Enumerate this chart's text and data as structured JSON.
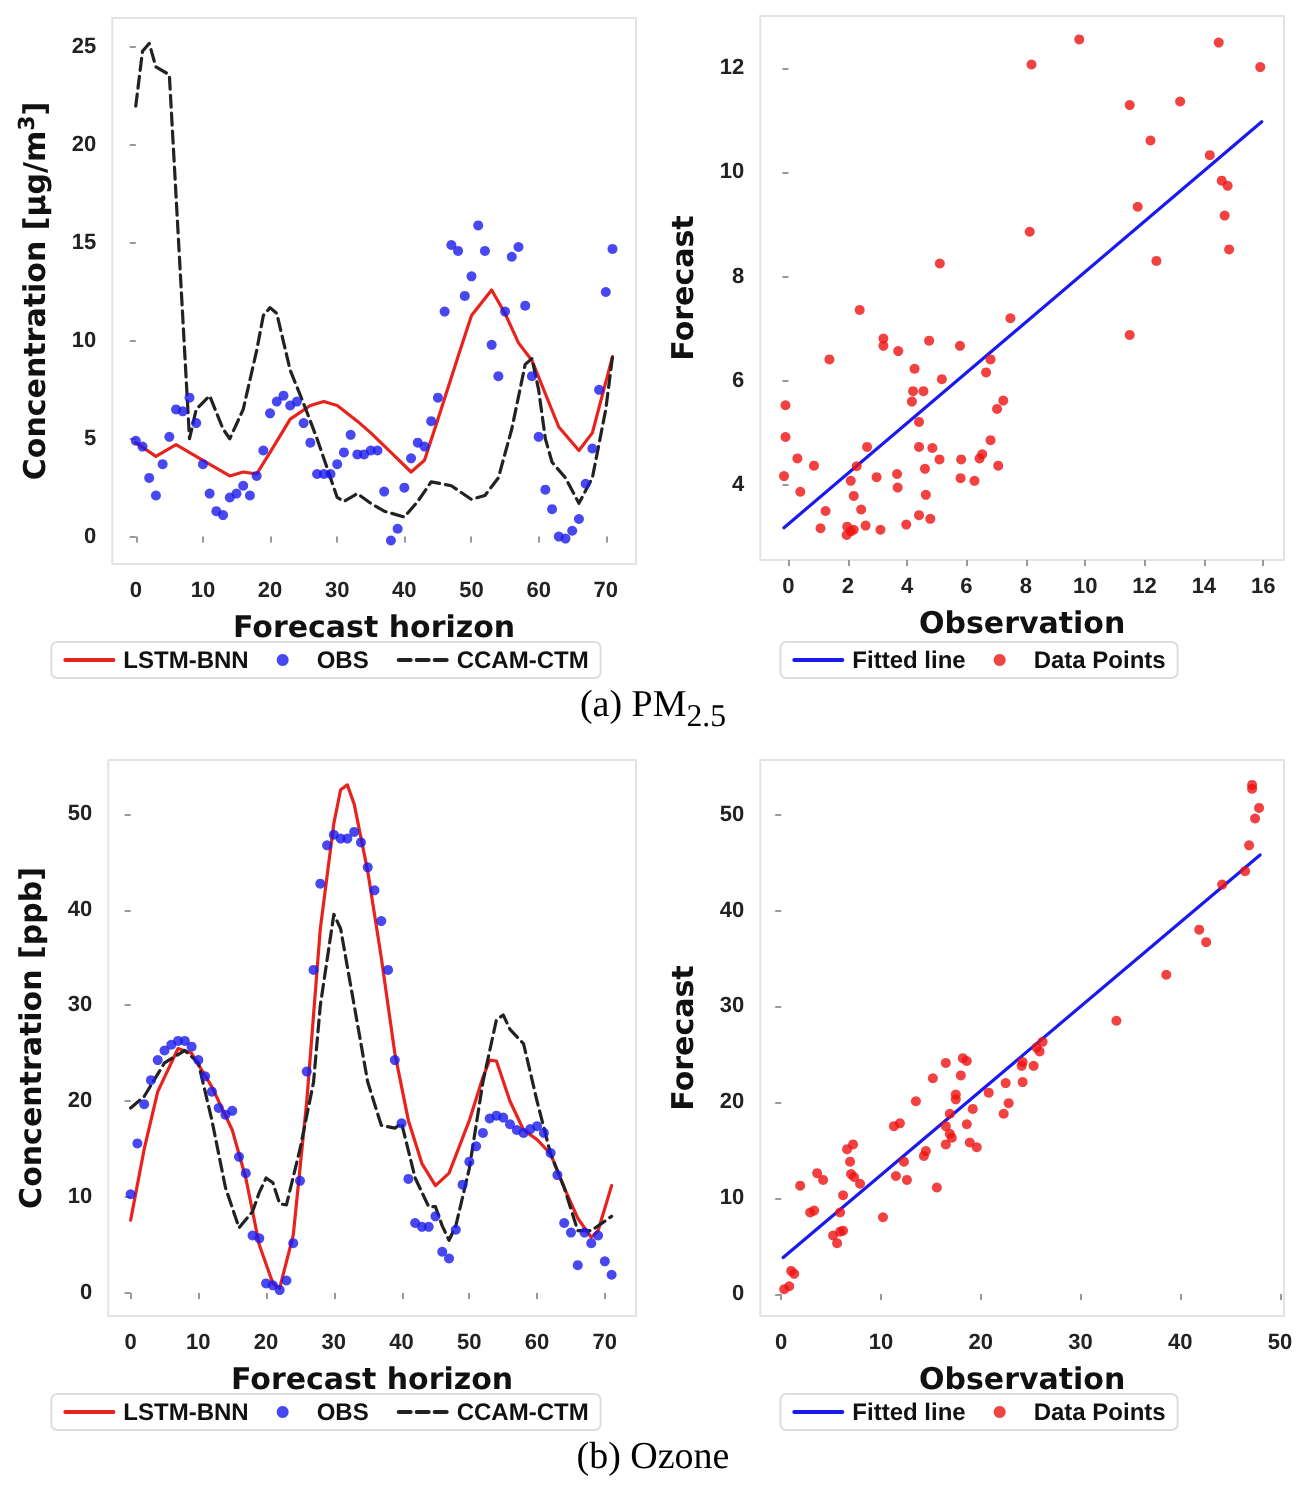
{
  "chart_data": [
    {
      "type": "line",
      "xlabel": "Forecast horizon",
      "ylabel": "Concentration [μg/m$^{3}$]",
      "xlim": [
        -3.5,
        74.5
      ],
      "ylim": [
        -1.4,
        26.5
      ],
      "xticks": [
        0,
        10,
        20,
        30,
        40,
        50,
        60,
        70
      ],
      "yticks": [
        0,
        5,
        10,
        15,
        20,
        25
      ],
      "legend": "bottom",
      "annotations": [
        "(a) PM$_{2.5}$"
      ],
      "series": [
        {
          "name": "LSTM-BNN",
          "color": "#e8221c",
          "line_style": "solid",
          "marker": "none",
          "x": [
            0,
            3,
            6,
            10,
            14,
            16,
            18,
            20,
            23,
            26,
            28,
            30,
            33,
            35,
            38,
            41,
            43,
            45,
            48,
            50,
            53,
            55,
            57,
            59,
            61,
            63,
            66,
            68,
            71
          ],
          "values": [
            4.8,
            4.1,
            4.7,
            3.9,
            3.1,
            3.3,
            3.2,
            4.3,
            6.0,
            6.7,
            6.9,
            6.7,
            5.9,
            5.3,
            4.3,
            3.3,
            3.9,
            6.0,
            9.2,
            11.3,
            12.6,
            11.4,
            9.9,
            9.0,
            7.3,
            5.6,
            4.4,
            5.3,
            9.2
          ]
        },
        {
          "name": "OBS",
          "type": "scatter",
          "color": "#1a1aee",
          "marker": "circle",
          "x": [
            0,
            1,
            2,
            3,
            4,
            5,
            6,
            7,
            8,
            9,
            10,
            11,
            12,
            13,
            14,
            15,
            16,
            17,
            18,
            19,
            20,
            21,
            22,
            23,
            24,
            25,
            26,
            27,
            28,
            29,
            30,
            31,
            32,
            33,
            34,
            35,
            36,
            37,
            38,
            39,
            40,
            41,
            42,
            43,
            44,
            45,
            46,
            47,
            48,
            49,
            50,
            51,
            52,
            53,
            54,
            55,
            56,
            57,
            58,
            59,
            60,
            61,
            62,
            63,
            64,
            65,
            66,
            67,
            68,
            69,
            70,
            71
          ],
          "values": [
            4.9,
            4.6,
            3.0,
            2.1,
            3.7,
            5.1,
            6.5,
            6.4,
            7.1,
            5.8,
            3.7,
            2.2,
            1.3,
            1.1,
            2.0,
            2.2,
            2.6,
            2.1,
            3.1,
            4.4,
            6.3,
            6.9,
            7.2,
            6.7,
            6.9,
            5.8,
            4.8,
            3.2,
            3.2,
            3.2,
            3.7,
            4.3,
            5.2,
            4.2,
            4.2,
            4.4,
            4.4,
            2.3,
            -0.2,
            0.4,
            2.5,
            4.0,
            4.8,
            4.6,
            5.9,
            7.1,
            11.5,
            14.9,
            14.6,
            12.3,
            13.3,
            15.9,
            14.6,
            9.8,
            8.2,
            11.5,
            14.3,
            14.8,
            11.8,
            8.2,
            5.1,
            2.4,
            1.4,
            0.0,
            -0.1,
            0.3,
            0.9,
            2.7,
            4.5,
            7.5,
            12.5,
            14.7
          ]
        },
        {
          "name": "CCAM-CTM",
          "color": "#222222",
          "line_style": "dashed",
          "marker": "none",
          "x": [
            0,
            1,
            2,
            3,
            5,
            8,
            9,
            11,
            13,
            14,
            16,
            18,
            19,
            20,
            21,
            23,
            25,
            27,
            29,
            30,
            31,
            33,
            35,
            37,
            40,
            42,
            44,
            47,
            50,
            52,
            54,
            56,
            58,
            59,
            60,
            61,
            62,
            64,
            66,
            68,
            70,
            71
          ],
          "values": [
            22.0,
            24.8,
            25.2,
            24.0,
            23.6,
            5.0,
            6.5,
            7.2,
            5.5,
            5.0,
            6.5,
            9.5,
            11.3,
            11.7,
            11.4,
            8.5,
            6.8,
            5.0,
            3.0,
            2.0,
            1.8,
            2.2,
            1.7,
            1.3,
            1.0,
            1.8,
            2.8,
            2.6,
            1.9,
            2.1,
            3.0,
            5.5,
            8.8,
            9.1,
            7.5,
            5.0,
            3.8,
            3.0,
            1.7,
            3.0,
            6.5,
            9.2
          ]
        }
      ]
    },
    {
      "type": "scatter",
      "xlabel": "Observation",
      "ylabel": "Forecast",
      "xlim": [
        -0.95,
        16.7
      ],
      "ylim": [
        2.56,
        13.0
      ],
      "xticks": [
        0,
        2,
        4,
        6,
        8,
        10,
        12,
        14,
        16
      ],
      "yticks": [
        4,
        6,
        8,
        10,
        12
      ],
      "legend": "bottom",
      "series": [
        {
          "name": "Fitted line",
          "type": "line",
          "color": "#1a1aee",
          "line_style": "solid",
          "marker": "none",
          "x": [
            -0.15,
            15.95
          ],
          "values": [
            3.18,
            10.97
          ]
        },
        {
          "name": "Data Points",
          "color": "#ee1111",
          "marker": "circle",
          "x": [
            -0.15,
            -0.1,
            -0.1,
            0.3,
            0.4,
            0.86,
            1.08,
            1.25,
            1.38,
            1.98,
            1.96,
            2.1,
            2.2,
            2.1,
            2.2,
            2.3,
            2.4,
            2.45,
            2.6,
            2.65,
            2.97,
            3.1,
            3.2,
            3.2,
            3.66,
            3.68,
            3.7,
            3.97,
            4.16,
            4.2,
            4.25,
            4.4,
            4.4,
            4.4,
            4.55,
            4.6,
            4.63,
            4.74,
            4.78,
            4.85,
            5.1,
            5.09,
            5.17,
            5.78,
            5.82,
            5.8,
            6.27,
            6.44,
            6.53,
            6.66,
            6.81,
            6.81,
            7.03,
            7.07,
            7.24,
            7.48,
            8.13,
            8.19,
            9.8,
            11.5,
            11.5,
            11.77,
            12.2,
            12.4,
            13.2,
            14.2,
            14.5,
            14.6,
            14.7,
            14.8,
            14.85,
            15.9
          ],
          "values": [
            4.17,
            4.92,
            5.53,
            4.51,
            3.87,
            4.37,
            3.17,
            3.5,
            6.41,
            3.2,
            3.04,
            3.11,
            3.14,
            4.08,
            3.79,
            4.36,
            7.36,
            3.53,
            3.22,
            4.73,
            4.15,
            3.14,
            6.67,
            6.81,
            4.21,
            3.95,
            6.57,
            3.24,
            5.6,
            5.8,
            6.23,
            5.21,
            4.73,
            3.42,
            5.8,
            4.31,
            3.81,
            6.77,
            3.35,
            4.71,
            8.25,
            4.49,
            6.03,
            6.67,
            4.49,
            4.13,
            4.08,
            4.51,
            4.59,
            6.16,
            6.41,
            4.86,
            5.46,
            4.37,
            5.62,
            7.2,
            8.86,
            12.07,
            12.55,
            11.29,
            6.88,
            9.34,
            10.61,
            8.3,
            11.36,
            10.33,
            12.49,
            9.84,
            9.17,
            9.74,
            8.52,
            12.02
          ]
        }
      ]
    },
    {
      "type": "line",
      "xlabel": "Forecast horizon",
      "ylabel": "Concentration [ppb]",
      "xlim": [
        -3.3,
        74.6
      ],
      "ylim": [
        -2.4,
        55.6
      ],
      "xticks": [
        0,
        10,
        20,
        30,
        40,
        50,
        60,
        70
      ],
      "yticks": [
        0,
        10,
        20,
        30,
        40,
        50
      ],
      "legend": "bottom",
      "annotations": [
        "(b) Ozone"
      ],
      "series": [
        {
          "name": "LSTM-BNN",
          "color": "#e8221c",
          "line_style": "solid",
          "marker": "none",
          "x": [
            0,
            2,
            4,
            7,
            9,
            12,
            15,
            17,
            19,
            21,
            22,
            24,
            26,
            28,
            30,
            31,
            32,
            33,
            35,
            37,
            39,
            41,
            43,
            45,
            47,
            50,
            52,
            53,
            54,
            56,
            58,
            60,
            62,
            64,
            66,
            68,
            69,
            71
          ],
          "values": [
            7.6,
            15,
            21,
            25.5,
            25,
            21.5,
            17,
            12,
            5,
            1.0,
            0.5,
            6,
            20,
            38,
            49,
            52.5,
            53,
            51,
            44,
            35,
            25,
            18,
            13.5,
            11.2,
            12.5,
            18,
            22.5,
            24.3,
            24.2,
            20,
            17,
            16,
            14.5,
            11,
            7.8,
            5.8,
            6.5,
            11.2
          ]
        },
        {
          "name": "OBS",
          "type": "scatter",
          "color": "#1a1aee",
          "marker": "circle",
          "x": [
            0,
            1,
            2,
            3,
            4,
            5,
            6,
            7,
            8,
            9,
            10,
            11,
            12,
            13,
            14,
            15,
            16,
            17,
            18,
            19,
            20,
            21,
            22,
            23,
            24,
            25,
            26,
            27,
            28,
            29,
            30,
            31,
            32,
            33,
            34,
            35,
            36,
            37,
            38,
            39,
            40,
            41,
            42,
            43,
            44,
            45,
            46,
            47,
            48,
            49,
            50,
            51,
            52,
            53,
            54,
            55,
            56,
            57,
            58,
            59,
            60,
            61,
            62,
            63,
            64,
            65,
            66,
            67,
            68,
            69,
            70,
            71
          ],
          "values": [
            10.3,
            15.6,
            19.7,
            22.2,
            24.3,
            25.3,
            25.9,
            26.3,
            26.3,
            25.7,
            24.3,
            22.6,
            21.0,
            19.3,
            18.6,
            19.0,
            14.2,
            12.5,
            6.0,
            5.7,
            1.0,
            0.8,
            0.3,
            1.3,
            5.2,
            11.7,
            23.1,
            33.7,
            42.7,
            46.7,
            47.8,
            47.4,
            47.4,
            48.1,
            47.0,
            44.4,
            42.0,
            38.8,
            33.7,
            24.3,
            17.7,
            11.9,
            7.3,
            6.9,
            6.9,
            8.0,
            4.3,
            3.6,
            6.6,
            11.3,
            13.7,
            15.3,
            16.7,
            18.2,
            18.5,
            18.3,
            17.6,
            17.0,
            16.7,
            17.1,
            17.4,
            16.7,
            14.6,
            12.3,
            7.3,
            6.3,
            2.9,
            6.3,
            5.2,
            6.0,
            3.3,
            1.9
          ]
        },
        {
          "name": "CCAM-CTM",
          "color": "#222222",
          "line_style": "dashed",
          "marker": "none",
          "x": [
            0,
            2,
            5,
            8,
            10,
            12,
            14,
            16,
            18,
            19,
            20,
            21,
            22,
            23,
            25,
            27,
            28,
            30,
            31,
            33,
            35,
            37,
            39,
            40,
            42,
            44,
            45,
            46,
            47,
            48,
            50,
            52,
            54,
            55,
            56,
            58,
            60,
            62,
            64,
            66,
            68,
            71
          ],
          "values": [
            19.3,
            20.5,
            24,
            25.3,
            24,
            18,
            11,
            6.8,
            8.5,
            10.5,
            12,
            11.5,
            9.3,
            9.2,
            15,
            22,
            30,
            39.5,
            38,
            30,
            22,
            17.5,
            17.2,
            17.7,
            12,
            9,
            9,
            7,
            5.5,
            7,
            13,
            22,
            28.5,
            29,
            27.5,
            26,
            20,
            14.5,
            11,
            6.5,
            6.5,
            8
          ]
        }
      ]
    },
    {
      "type": "scatter",
      "xlabel": "Observation",
      "ylabel": "Forecast",
      "xlim": [
        -2.1,
        50.4
      ],
      "ylim": [
        -2.3,
        55.7
      ],
      "xticks": [
        0,
        10,
        20,
        30,
        40,
        50
      ],
      "yticks": [
        0,
        10,
        20,
        30,
        40,
        50
      ],
      "legend": "bottom",
      "series": [
        {
          "name": "Fitted line",
          "type": "line",
          "color": "#1a1aee",
          "line_style": "solid",
          "marker": "none",
          "x": [
            0.2,
            48.0
          ],
          "values": [
            3.8,
            45.8
          ]
        },
        {
          "name": "Data Points",
          "color": "#ee1111",
          "marker": "circle",
          "x": [
            0.3,
            0.8,
            1.0,
            1.3,
            1.9,
            2.9,
            3.3,
            3.6,
            4.2,
            5.2,
            5.6,
            5.9,
            6.2,
            5.9,
            6.2,
            6.6,
            6.9,
            7.0,
            7.2,
            7.3,
            7.9,
            10.2,
            11.3,
            11.5,
            11.9,
            12.3,
            12.6,
            13.5,
            14.3,
            14.5,
            15.2,
            15.6,
            16.5,
            16.5,
            16.5,
            16.9,
            16.9,
            17.1,
            17.5,
            17.5,
            18.0,
            18.2,
            18.6,
            18.6,
            18.9,
            19.2,
            19.6,
            20.8,
            22.3,
            22.5,
            22.8,
            24.1,
            24.2,
            24.2,
            25.3,
            25.6,
            25.9,
            26.2,
            33.6,
            38.6,
            41.9,
            42.6,
            44.2,
            46.5,
            46.9,
            47.2,
            47.2,
            47.5,
            47.9
          ],
          "values": [
            0.5,
            0.8,
            2.4,
            2.1,
            11.3,
            8.5,
            8.7,
            12.6,
            11.9,
            6.1,
            5.3,
            6.5,
            6.6,
            8.5,
            10.3,
            15.1,
            13.8,
            12.5,
            15.6,
            12.2,
            11.5,
            8.0,
            17.5,
            12.3,
            17.8,
            13.8,
            11.9,
            20.1,
            14.4,
            14.9,
            22.5,
            11.1,
            24.1,
            17.5,
            15.6,
            18.8,
            16.7,
            16.3,
            20.8,
            20.3,
            22.8,
            24.6,
            24.3,
            17.7,
            15.8,
            19.3,
            15.3,
            21.0,
            18.8,
            22.0,
            19.9,
            23.8,
            24.2,
            22.1,
            23.8,
            25.7,
            25.3,
            26.3,
            28.5,
            33.3,
            38.0,
            36.7,
            42.7,
            44.1,
            46.8,
            53.1,
            52.7,
            49.6,
            50.7
          ]
        }
      ]
    }
  ]
}
